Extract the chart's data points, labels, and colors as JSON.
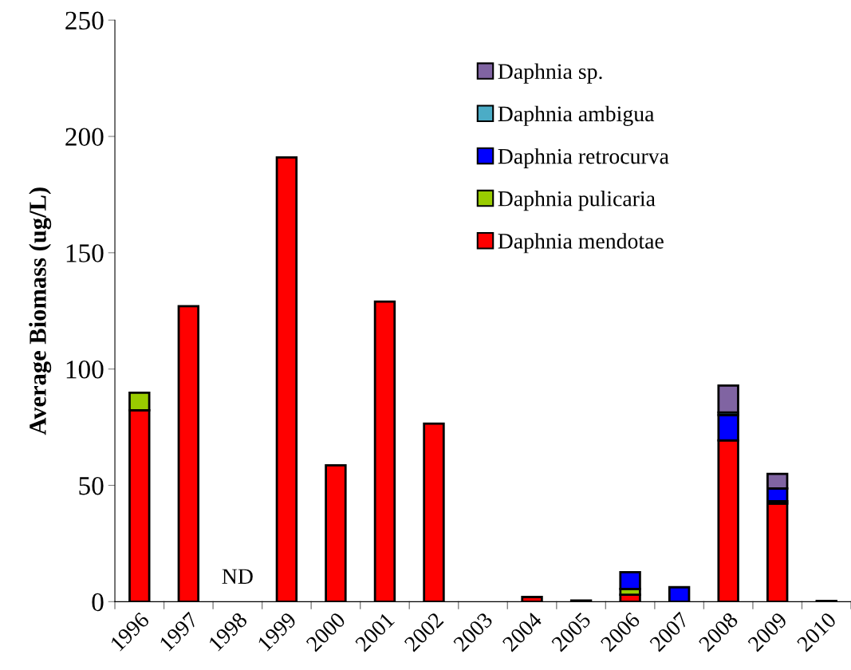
{
  "chart_data": {
    "type": "bar",
    "stacked": true,
    "ylabel": "Average Biomass (ug/L)",
    "categories": [
      "1996",
      "1997",
      "1998",
      "1999",
      "2000",
      "2001",
      "2002",
      "2003",
      "2004",
      "2005",
      "2006",
      "2007",
      "2008",
      "2009",
      "2010"
    ],
    "series": [
      {
        "name": "Daphnia mendotae",
        "color": "#ff0000",
        "values": [
          82.3,
          127,
          null,
          191,
          58.6,
          129,
          76.5,
          null,
          2,
          0.5,
          3,
          0,
          69.3,
          42.2,
          0.3
        ]
      },
      {
        "name": "Daphnia pulicaria",
        "color": "#99cc00",
        "values": [
          7.5,
          0,
          null,
          0,
          0,
          0,
          0,
          null,
          0,
          0,
          2.5,
          0,
          0,
          1,
          0
        ]
      },
      {
        "name": "Daphnia retrocurva",
        "color": "#0000ff",
        "values": [
          0,
          0,
          null,
          0,
          0,
          0,
          0,
          null,
          0,
          0,
          7.2,
          6.2,
          10.9,
          5.5,
          0
        ]
      },
      {
        "name": "Daphnia ambigua",
        "color": "#4bacc6",
        "values": [
          0,
          0,
          null,
          0,
          0,
          0,
          0,
          null,
          0,
          0,
          0,
          0,
          1.1,
          0,
          0
        ]
      },
      {
        "name": "Daphnia sp.",
        "color": "#8064a2",
        "values": [
          0,
          0,
          null,
          0,
          0,
          0,
          0,
          null,
          0,
          0,
          0,
          0,
          11.6,
          6.2,
          0
        ]
      }
    ],
    "annotations": [
      "ND"
    ],
    "ylim": [
      0,
      250
    ],
    "yticks": [
      0,
      50,
      100,
      150,
      200,
      250
    ],
    "grid": false,
    "legend": "top right"
  }
}
